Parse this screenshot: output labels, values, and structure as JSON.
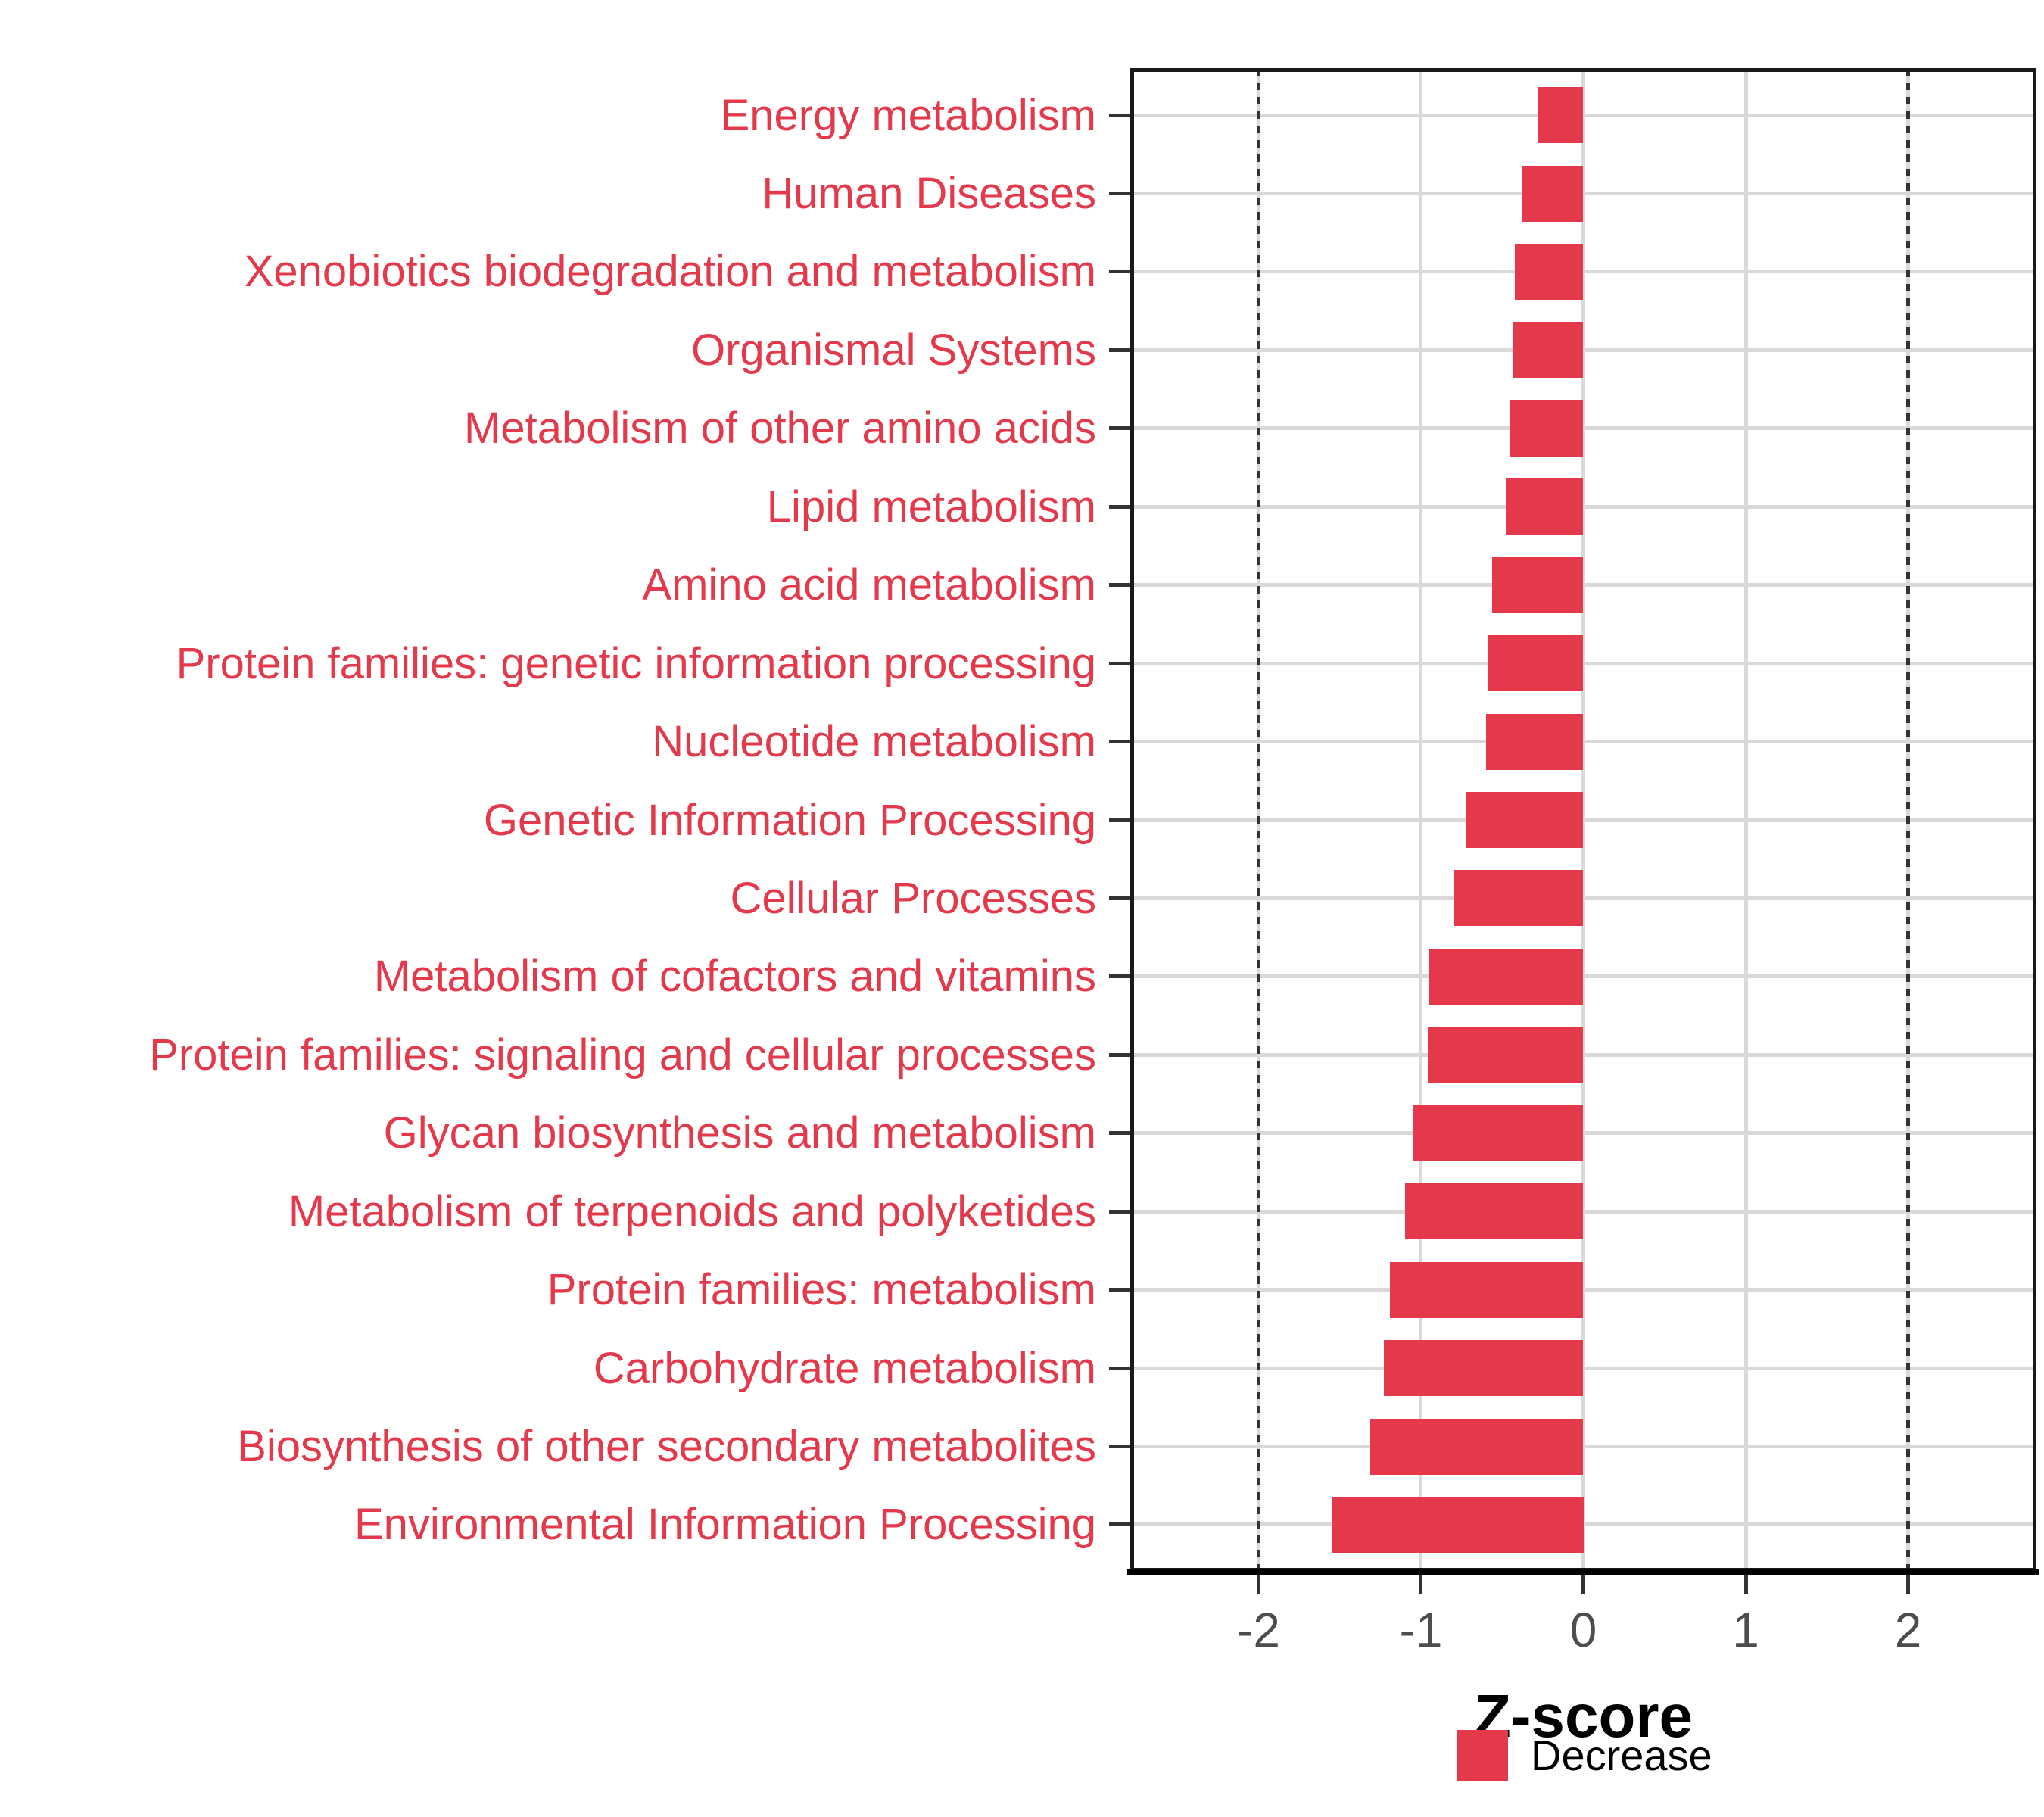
{
  "chart_data": {
    "type": "bar",
    "orientation": "horizontal",
    "title": "",
    "xlabel": "Z-score",
    "ylabel": "",
    "xlim": [
      -2.79,
      2.79
    ],
    "x_ticks": [
      -2,
      -1,
      0,
      1,
      2
    ],
    "x_tick_labels": [
      "-2",
      "-1",
      "0",
      "1",
      "2"
    ],
    "grid": true,
    "reference_lines": [
      -2,
      2
    ],
    "legend_position": "bottom",
    "series_name": "Decrease",
    "categories": [
      "Energy metabolism",
      "Human Diseases",
      "Xenobiotics biodegradation and metabolism",
      "Organismal Systems",
      "Metabolism of other amino acids",
      "Lipid metabolism",
      "Amino acid metabolism",
      "Protein families: genetic information processing",
      "Nucleotide metabolism",
      "Genetic Information Processing",
      "Cellular Processes",
      "Metabolism of cofactors and vitamins",
      "Protein families: signaling and cellular processes",
      "Glycan biosynthesis and metabolism",
      "Metabolism of terpenoids and polyketides",
      "Protein families: metabolism",
      "Carbohydrate metabolism",
      "Biosynthesis of other secondary metabolites",
      "Environmental Information Processing"
    ],
    "values": [
      -0.28,
      -0.38,
      -0.42,
      -0.43,
      -0.45,
      -0.48,
      -0.56,
      -0.59,
      -0.6,
      -0.72,
      -0.8,
      -0.95,
      -0.96,
      -1.05,
      -1.1,
      -1.19,
      -1.23,
      -1.31,
      -1.55
    ]
  },
  "legend": {
    "label": "Decrease"
  },
  "axis": {
    "title": "Z-score"
  },
  "colors": {
    "bar": "#e4394b",
    "category_label": "#e4394b",
    "axis_text": "#4d4d4d",
    "axis_title": "#000000",
    "gridline": "#d9d9d9",
    "reference_line": "#333333",
    "panel_border": "#1a1a1a",
    "background": "#ffffff"
  }
}
